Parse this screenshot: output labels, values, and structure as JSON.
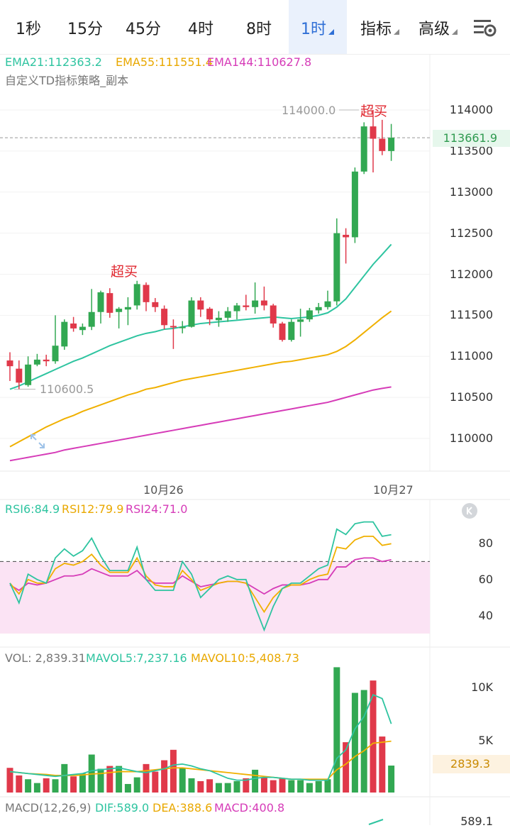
{
  "tabs": [
    {
      "label": "1秒",
      "active": false
    },
    {
      "label": "15分",
      "active": false
    },
    {
      "label": "45分",
      "active": false
    },
    {
      "label": "4时",
      "active": false
    },
    {
      "label": "8时",
      "active": false
    },
    {
      "label": "1时",
      "active": true,
      "dropdown": true
    },
    {
      "label": "指标",
      "active": false,
      "dropdown": true
    },
    {
      "label": "高级",
      "active": false,
      "dropdown": true
    }
  ],
  "settings_icon": "chart-settings-icon",
  "main": {
    "ema21": "EMA21:112363.2",
    "ema55": "EMA55:111551.4",
    "ema144": "EMA144:110627.8",
    "strategy": "自定义TD指标策略_副本",
    "high_marker": "114000.0",
    "low_marker": "110600.5",
    "current_price": "113661.9",
    "overbought_1": "超买",
    "overbought_2": "超买",
    "y_ticks": [
      "114000",
      "113500",
      "113000",
      "112500",
      "112000",
      "111500",
      "111000",
      "110500",
      "110000"
    ],
    "x_ticks": [
      "10月26",
      "10月27"
    ],
    "expand_icon": "expand-icon"
  },
  "rsi": {
    "rsi6": "RSI6:84.9",
    "rsi12": "RSI12:79.9",
    "rsi24": "RSI24:71.0",
    "y_ticks": [
      "80",
      "60",
      "40"
    ],
    "collapse_icon": "collapse-icon"
  },
  "vol": {
    "vol": "VOL: 2,839.31",
    "mavol5": "MAVOL5:7,237.16",
    "mavol10": "MAVOL10:5,408.73",
    "y_ticks": [
      "10K",
      "5K"
    ],
    "current": "2839.3"
  },
  "macd": {
    "label": "MACD(12,26,9)",
    "dif": "DIF:589.0",
    "dea": "DEA:388.6",
    "macd": "MACD:400.8",
    "tick": "589.1"
  },
  "colors": {
    "up": "#32a852",
    "down": "#e0394a",
    "ema21": "#2ec4a0",
    "ema55": "#f0b000",
    "ema144": "#d63cb8",
    "active": "#2f6fd6"
  },
  "chart_data": {
    "type": "candlestick",
    "interval": "1h",
    "ylim": [
      109650,
      114450
    ],
    "candles": [
      {
        "o": 110950,
        "h": 111050,
        "l": 110700,
        "c": 110880
      },
      {
        "o": 110850,
        "h": 110950,
        "l": 110600.5,
        "c": 110680
      },
      {
        "o": 110650,
        "h": 111000,
        "l": 110630,
        "c": 110900
      },
      {
        "o": 110900,
        "h": 111030,
        "l": 110880,
        "c": 110960
      },
      {
        "o": 110960,
        "h": 111020,
        "l": 110880,
        "c": 110940
      },
      {
        "o": 110940,
        "h": 111500,
        "l": 110910,
        "c": 111130
      },
      {
        "o": 111120,
        "h": 111450,
        "l": 111080,
        "c": 111420
      },
      {
        "o": 111400,
        "h": 111480,
        "l": 111300,
        "c": 111340
      },
      {
        "o": 111320,
        "h": 111400,
        "l": 111260,
        "c": 111360
      },
      {
        "o": 111360,
        "h": 111820,
        "l": 111320,
        "c": 111540
      },
      {
        "o": 111540,
        "h": 111800,
        "l": 111400,
        "c": 111780
      },
      {
        "o": 111770,
        "h": 111830,
        "l": 111470,
        "c": 111530
      },
      {
        "o": 111540,
        "h": 111600,
        "l": 111340,
        "c": 111580
      },
      {
        "o": 111570,
        "h": 111720,
        "l": 111380,
        "c": 111600
      },
      {
        "o": 111620,
        "h": 111920,
        "l": 111570,
        "c": 111880
      },
      {
        "o": 111870,
        "h": 111900,
        "l": 111550,
        "c": 111660
      },
      {
        "o": 111660,
        "h": 111710,
        "l": 111540,
        "c": 111600
      },
      {
        "o": 111580,
        "h": 111620,
        "l": 111330,
        "c": 111380
      },
      {
        "o": 111370,
        "h": 111450,
        "l": 111090,
        "c": 111360
      },
      {
        "o": 111360,
        "h": 111430,
        "l": 111280,
        "c": 111360
      },
      {
        "o": 111360,
        "h": 111720,
        "l": 111350,
        "c": 111680
      },
      {
        "o": 111680,
        "h": 111720,
        "l": 111480,
        "c": 111570
      },
      {
        "o": 111580,
        "h": 111600,
        "l": 111380,
        "c": 111450
      },
      {
        "o": 111440,
        "h": 111550,
        "l": 111360,
        "c": 111470
      },
      {
        "o": 111470,
        "h": 111600,
        "l": 111420,
        "c": 111550
      },
      {
        "o": 111550,
        "h": 111650,
        "l": 111450,
        "c": 111620
      },
      {
        "o": 111620,
        "h": 111750,
        "l": 111560,
        "c": 111600
      },
      {
        "o": 111600,
        "h": 111900,
        "l": 111520,
        "c": 111680
      },
      {
        "o": 111680,
        "h": 111850,
        "l": 111560,
        "c": 111620
      },
      {
        "o": 111620,
        "h": 111640,
        "l": 111350,
        "c": 111400
      },
      {
        "o": 111400,
        "h": 111420,
        "l": 111180,
        "c": 111200
      },
      {
        "o": 111200,
        "h": 111450,
        "l": 111180,
        "c": 111420
      },
      {
        "o": 111420,
        "h": 111580,
        "l": 111240,
        "c": 111450
      },
      {
        "o": 111450,
        "h": 111590,
        "l": 111420,
        "c": 111560
      },
      {
        "o": 111560,
        "h": 111650,
        "l": 111520,
        "c": 111600
      },
      {
        "o": 111600,
        "h": 111800,
        "l": 111570,
        "c": 111670
      },
      {
        "o": 111670,
        "h": 112680,
        "l": 111620,
        "c": 112500
      },
      {
        "o": 112480,
        "h": 112560,
        "l": 112130,
        "c": 112450
      },
      {
        "o": 112450,
        "h": 113300,
        "l": 112380,
        "c": 113250
      },
      {
        "o": 113250,
        "h": 113850,
        "l": 113220,
        "c": 113800
      },
      {
        "o": 113800,
        "h": 114000,
        "l": 113240,
        "c": 113650
      },
      {
        "o": 113650,
        "h": 113880,
        "l": 113450,
        "c": 113500
      },
      {
        "o": 113500,
        "h": 113830,
        "l": 113380,
        "c": 113661.9
      }
    ],
    "ema21": [
      110600,
      110640,
      110690,
      110740,
      110790,
      110840,
      110890,
      110940,
      110980,
      111030,
      111080,
      111130,
      111170,
      111210,
      111250,
      111280,
      111300,
      111330,
      111340,
      111360,
      111380,
      111400,
      111410,
      111420,
      111430,
      111440,
      111450,
      111460,
      111470,
      111480,
      111470,
      111460,
      111470,
      111480,
      111500,
      111530,
      111600,
      111700,
      111840,
      111980,
      112120,
      112240,
      112363.2
    ],
    "ema55": [
      109900,
      109960,
      110020,
      110080,
      110140,
      110190,
      110240,
      110280,
      110330,
      110370,
      110410,
      110450,
      110490,
      110530,
      110560,
      110600,
      110620,
      110650,
      110680,
      110710,
      110730,
      110750,
      110770,
      110790,
      110810,
      110830,
      110850,
      110870,
      110890,
      110910,
      110930,
      110940,
      110960,
      110980,
      111000,
      111020,
      111060,
      111120,
      111200,
      111290,
      111380,
      111470,
      111551.4
    ],
    "ema144": [
      109730,
      109750,
      109770,
      109790,
      109810,
      109830,
      109860,
      109880,
      109900,
      109920,
      109940,
      109960,
      109980,
      110000,
      110020,
      110040,
      110060,
      110080,
      110100,
      110120,
      110140,
      110160,
      110180,
      110200,
      110220,
      110240,
      110260,
      110280,
      110300,
      110320,
      110340,
      110360,
      110380,
      110400,
      110420,
      110440,
      110470,
      110500,
      110530,
      110560,
      110590,
      110610,
      110627.8
    ],
    "rsi_ylim": [
      28,
      95
    ],
    "rsi6": [
      58,
      47,
      63,
      60,
      58,
      72,
      77,
      73,
      76,
      83,
      73,
      65,
      65,
      65,
      78,
      60,
      54,
      54,
      54,
      70,
      63,
      50,
      55,
      60,
      62,
      60,
      60,
      45,
      32,
      45,
      55,
      58,
      58,
      62,
      66,
      68,
      88,
      85,
      91,
      92,
      92,
      84,
      84.9
    ],
    "rsi12": [
      58,
      52,
      60,
      58,
      58,
      66,
      69,
      68,
      70,
      74,
      68,
      64,
      64,
      64,
      72,
      62,
      57,
      56,
      56,
      65,
      60,
      54,
      56,
      58,
      59,
      59,
      58,
      50,
      42,
      50,
      55,
      57,
      57,
      60,
      62,
      63,
      78,
      77,
      82,
      84,
      84,
      79,
      79.9
    ],
    "rsi24": [
      57,
      54,
      58,
      57,
      58,
      60,
      62,
      62,
      63,
      66,
      64,
      62,
      62,
      62,
      65,
      60,
      58,
      58,
      58,
      62,
      59,
      56,
      57,
      58,
      59,
      59,
      58,
      55,
      52,
      55,
      57,
      57,
      57,
      58,
      60,
      60,
      67,
      67,
      71,
      72,
      72,
      70,
      71.0
    ],
    "rsi_band": [
      30,
      70
    ],
    "vol_ylim": [
      0,
      13500
    ],
    "volume": [
      2600,
      1800,
      1400,
      1000,
      1500,
      1400,
      3000,
      1700,
      2000,
      4000,
      2500,
      2800,
      2800,
      900,
      1600,
      3000,
      2200,
      3400,
      4500,
      2600,
      1500,
      1200,
      1400,
      1000,
      1000,
      1200,
      1500,
      2400,
      1600,
      1300,
      1500,
      1300,
      1300,
      1000,
      1200,
      1400,
      13200,
      5300,
      10500,
      10800,
      11800,
      5900,
      2839.31
    ],
    "mavol5": [
      2200,
      2100,
      2000,
      1900,
      1800,
      1700,
      1800,
      1900,
      2000,
      2300,
      2400,
      2500,
      2600,
      2400,
      2200,
      2100,
      2300,
      2500,
      2900,
      3000,
      2800,
      2500,
      2300,
      1900,
      1500,
      1300,
      1300,
      1500,
      1600,
      1600,
      1500,
      1400,
      1400,
      1300,
      1300,
      1300,
      3600,
      4500,
      6700,
      8000,
      10300,
      9900,
      7237.16
    ],
    "mavol10": [
      2200,
      2100,
      2000,
      1950,
      1900,
      1800,
      1800,
      1800,
      1850,
      1950,
      2000,
      2100,
      2200,
      2200,
      2200,
      2300,
      2400,
      2500,
      2600,
      2600,
      2500,
      2400,
      2300,
      2200,
      2100,
      2000,
      1900,
      1800,
      1700,
      1600,
      1500,
      1400,
      1400,
      1400,
      1400,
      1400,
      2400,
      3000,
      3800,
      4400,
      5200,
      5300,
      5408.73
    ]
  }
}
